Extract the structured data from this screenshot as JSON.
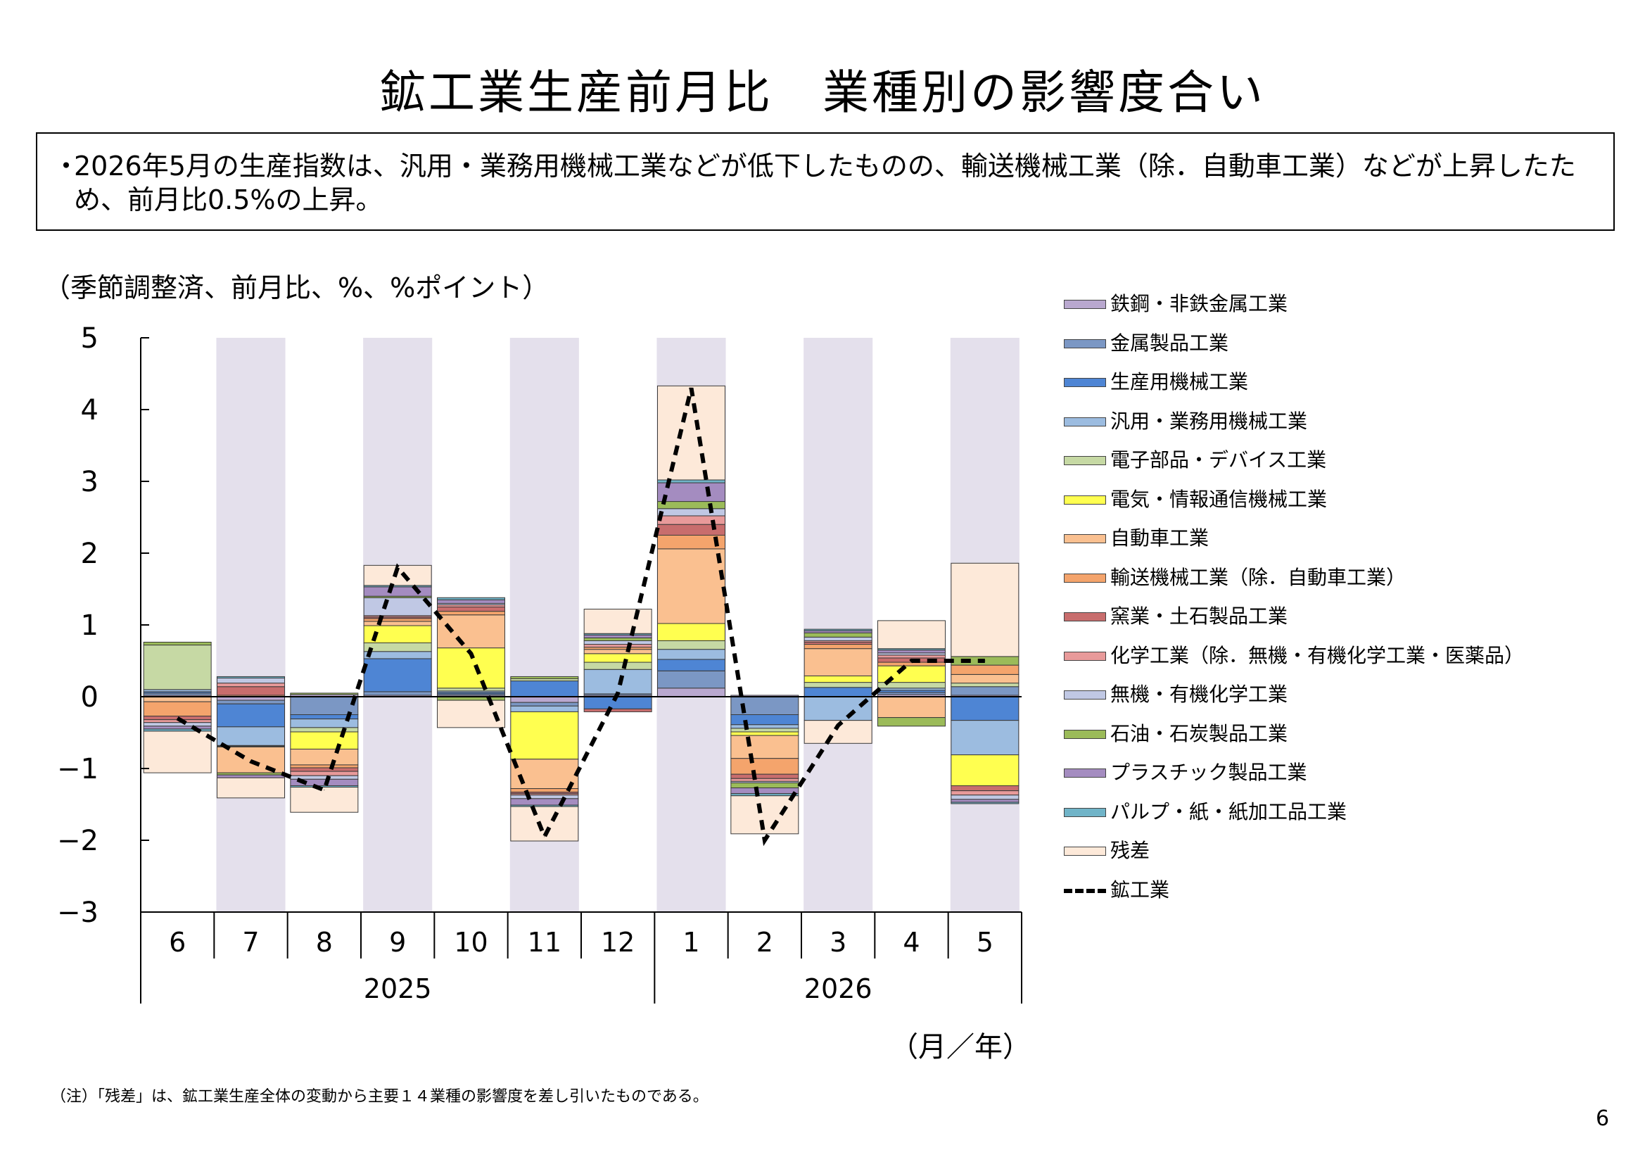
{
  "title": "鉱工業生産前月比　業種別の影響度合い",
  "summary": "2026年5月の生産指数は、汎用・業務用機械工業などが低下したものの、輸送機械工業（除．自動車工業）などが上昇したため、前月比0.5%の上昇。",
  "summary_bullet": "・",
  "unit_label": "（季節調整済、前月比、%、%ポイント）",
  "x_unit_label": "（月／年）",
  "note": "（注）「残差」は、鉱工業生産全体の変動から主要１４業種の影響度を差し引いたものである。",
  "page_number": "6",
  "chart_data": {
    "type": "bar",
    "stacked": true,
    "categories": [
      "6",
      "7",
      "8",
      "9",
      "10",
      "11",
      "12",
      "1",
      "2",
      "3",
      "4",
      "5"
    ],
    "year_groups": [
      {
        "label": "2025",
        "from": 0,
        "to": 6
      },
      {
        "label": "2026",
        "from": 7,
        "to": 11
      }
    ],
    "ylim": [
      -3,
      5
    ],
    "yticks": [
      5,
      4,
      3,
      2,
      1,
      0,
      -1,
      -2,
      -3
    ],
    "ytick_labels": [
      "5",
      "4",
      "3",
      "2",
      "1",
      "0",
      "−1",
      "−2",
      "−3"
    ],
    "shaded_categories": [
      1,
      3,
      5,
      7,
      9,
      11
    ],
    "shade_color": "#e4e0ec",
    "series": [
      {
        "name": "鉄鋼・非鉄金属工業",
        "color": "#b9a8cf",
        "values": [
          0.02,
          -0.05,
          0.03,
          0.02,
          0.02,
          -0.08,
          0.02,
          0.12,
          0.02,
          0.0,
          0.03,
          0.02
        ]
      },
      {
        "name": "金属製品工業",
        "color": "#7b97c4",
        "values": [
          0.03,
          -0.05,
          -0.25,
          0.05,
          0.02,
          -0.05,
          0.02,
          0.24,
          -0.25,
          0.0,
          0.03,
          0.12
        ]
      },
      {
        "name": "生産用機械工業",
        "color": "#4e85d4",
        "values": [
          0.02,
          -0.32,
          -0.06,
          0.46,
          0.02,
          0.22,
          -0.17,
          0.16,
          -0.14,
          0.13,
          0.03,
          -0.33
        ]
      },
      {
        "name": "汎用・業務用機械工業",
        "color": "#9cbce0",
        "values": [
          0.03,
          -0.26,
          -0.12,
          0.1,
          0.02,
          -0.08,
          0.34,
          0.14,
          -0.05,
          -0.33,
          0.03,
          -0.48
        ]
      },
      {
        "name": "電子部品・デバイス工業",
        "color": "#c6d9a4",
        "values": [
          0.62,
          -0.01,
          -0.06,
          0.12,
          0.04,
          0.03,
          0.1,
          0.12,
          -0.05,
          0.07,
          0.08,
          0.05
        ]
      },
      {
        "name": "電気・情報通信機械工業",
        "color": "#ffff50",
        "values": [
          0.0,
          -0.01,
          -0.24,
          0.24,
          0.56,
          -0.66,
          0.12,
          0.24,
          -0.05,
          0.09,
          0.23,
          -0.43
        ]
      },
      {
        "name": "自動車工業",
        "color": "#fac090",
        "values": [
          -0.07,
          -0.36,
          -0.22,
          0.06,
          0.46,
          -0.41,
          0.06,
          1.04,
          -0.32,
          0.38,
          -0.29,
          0.12
        ]
      },
      {
        "name": "輸送機械工業（除．自動車工業）",
        "color": "#f4a46c",
        "values": [
          -0.2,
          0.02,
          -0.04,
          0.04,
          0.05,
          -0.05,
          0.03,
          0.19,
          -0.22,
          0.06,
          0.05,
          0.13
        ]
      },
      {
        "name": "窯業・土石製品工業",
        "color": "#c86d6d",
        "values": [
          -0.05,
          0.12,
          -0.05,
          0.02,
          0.06,
          -0.02,
          -0.04,
          0.15,
          -0.06,
          0.03,
          0.06,
          -0.07
        ]
      },
      {
        "name": "化学工業（除．無機・有機化学工業・医薬品）",
        "color": "#e89a9a",
        "values": [
          -0.04,
          0.05,
          -0.06,
          0.02,
          0.03,
          -0.02,
          0.04,
          0.12,
          -0.04,
          0.02,
          0.04,
          -0.06
        ]
      },
      {
        "name": "無機・有機化学工業",
        "color": "#c0c8e4",
        "values": [
          -0.05,
          0.07,
          -0.05,
          0.25,
          0.02,
          -0.05,
          0.05,
          0.1,
          -0.02,
          0.05,
          0.03,
          -0.06
        ]
      },
      {
        "name": "石油・石炭製品工業",
        "color": "#9bbb59",
        "values": [
          0.04,
          -0.03,
          0.02,
          0.02,
          -0.05,
          0.03,
          0.04,
          0.1,
          -0.07,
          0.06,
          -0.12,
          0.12
        ]
      },
      {
        "name": "プラスチック製品工業",
        "color": "#a48cc0",
        "values": [
          -0.04,
          -0.04,
          -0.09,
          0.13,
          0.05,
          -0.09,
          0.04,
          0.26,
          -0.08,
          0.03,
          0.04,
          -0.04
        ]
      },
      {
        "name": "パルプ・紙・紙加工品工業",
        "color": "#70b4c8",
        "values": [
          -0.03,
          0.02,
          -0.02,
          0.02,
          0.03,
          -0.02,
          0.02,
          0.04,
          -0.03,
          0.02,
          0.02,
          -0.02
        ]
      },
      {
        "name": "残差",
        "color": "#fde9d9",
        "values": [
          -0.58,
          -0.28,
          -0.35,
          0.28,
          -0.38,
          -0.48,
          0.34,
          1.31,
          -0.53,
          -0.32,
          0.39,
          1.3
        ]
      }
    ],
    "line_series": {
      "name": "鉱工業",
      "color": "#000000",
      "values": [
        -0.3,
        -0.9,
        -1.3,
        1.8,
        0.6,
        -1.95,
        0.05,
        4.3,
        -2.0,
        -0.4,
        0.5,
        0.5
      ]
    }
  }
}
